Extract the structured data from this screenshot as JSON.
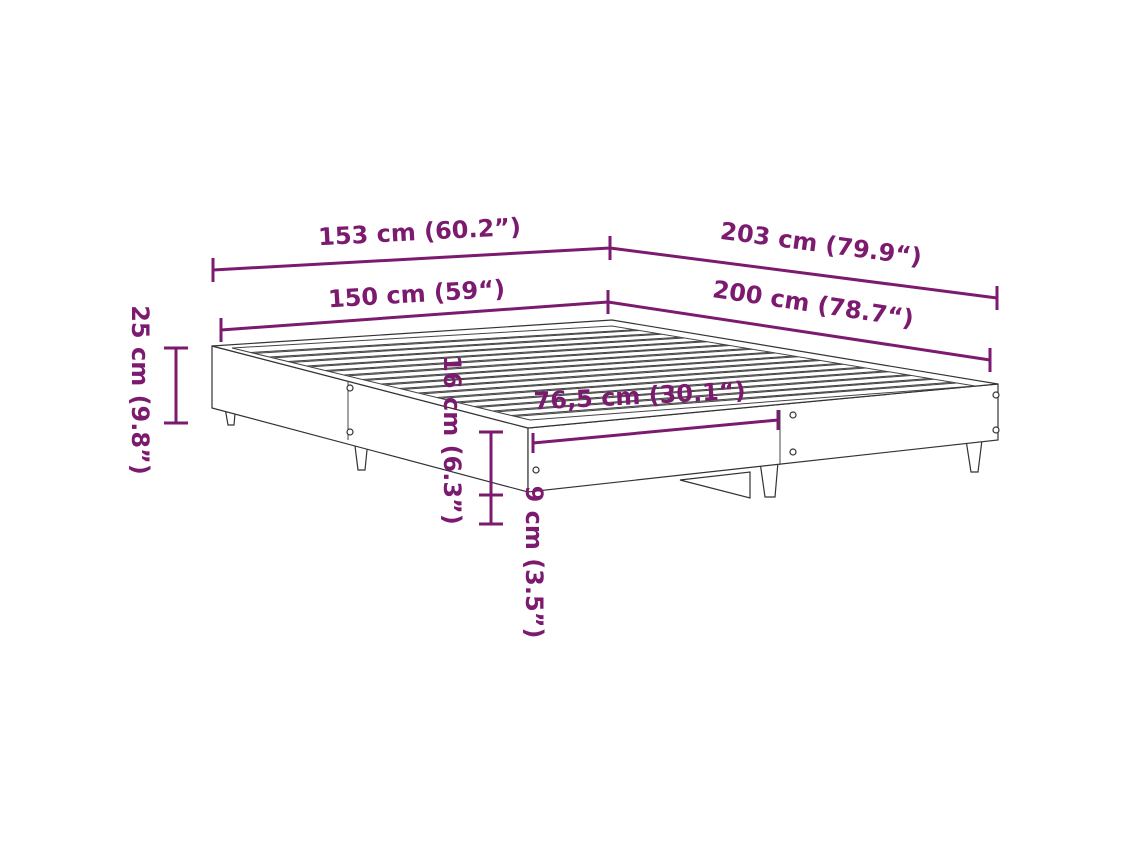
{
  "colors": {
    "dimension": "#7b1a6f",
    "outline": "#333333"
  },
  "labels": {
    "outer_width": "153 cm (60.2”)",
    "outer_length": "203 cm (79.9“)",
    "inner_width": "150 cm (59“)",
    "inner_length": "200 cm (78.7“)",
    "total_height": "25 cm (9.8”)",
    "frame_height": "16 cm (6.3”)",
    "clearance": "9 cm (3.5”)",
    "half_width": "76,5 cm (30.1“)"
  }
}
